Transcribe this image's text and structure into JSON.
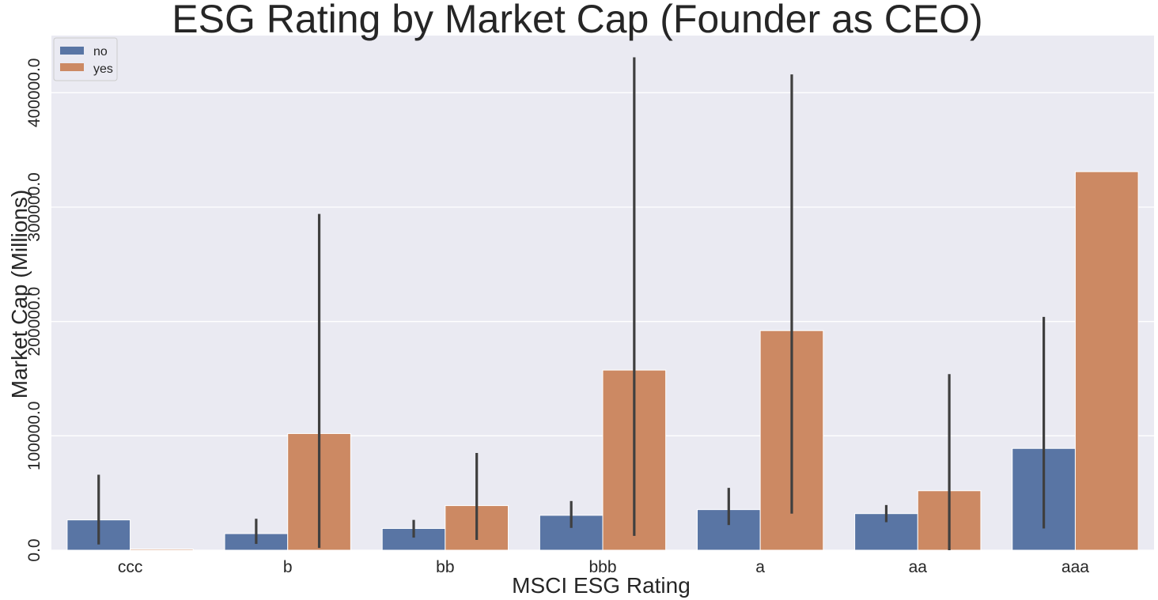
{
  "chart_data": {
    "type": "bar",
    "title": "ESG Rating by Market Cap (Founder as CEO)",
    "xlabel": "MSCI ESG Rating",
    "ylabel": "Market Cap (Millions)",
    "categories": [
      "ccc",
      "b",
      "bb",
      "bbb",
      "a",
      "aa",
      "aaa"
    ],
    "ylim": [
      0,
      450000
    ],
    "yticks": [
      0,
      100000,
      200000,
      300000,
      400000
    ],
    "ytick_labels": [
      "0.0",
      "100000.0",
      "200000.0",
      "300000.0",
      "400000.0"
    ],
    "grid": true,
    "legend_position": "top-left",
    "series": [
      {
        "name": "no",
        "color": "#5975a4",
        "values": [
          26500,
          14500,
          19000,
          30500,
          35500,
          32000,
          89000
        ],
        "error_low": [
          5000,
          5500,
          11000,
          19500,
          22000,
          24500,
          19000
        ],
        "error_high": [
          66000,
          27500,
          26500,
          43000,
          54500,
          39500,
          204000
        ]
      },
      {
        "name": "yes",
        "color": "#cc8963",
        "values": [
          1000,
          102000,
          39000,
          157500,
          192000,
          52000,
          331000
        ],
        "error_low": [
          1000,
          2000,
          9000,
          12500,
          32000,
          0,
          331000
        ],
        "error_high": [
          1000,
          294000,
          85000,
          431000,
          416000,
          154000,
          331000
        ]
      }
    ],
    "colors": {
      "background": "#eaeaf2",
      "grid": "#ffffff",
      "error_bar": "#3f3f3f"
    }
  }
}
